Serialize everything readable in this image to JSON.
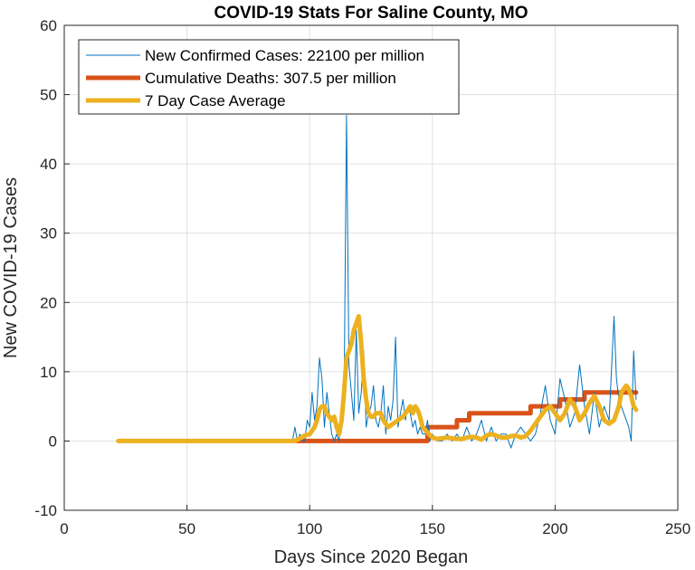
{
  "chart_data": {
    "type": "line",
    "title": "COVID-19 Stats For Saline County, MO",
    "xlabel": "Days Since 2020 Began",
    "ylabel": "New COVID-19 Cases",
    "xlim": [
      0,
      250
    ],
    "ylim": [
      -10,
      60
    ],
    "xticks": [
      0,
      50,
      100,
      150,
      200,
      250
    ],
    "yticks": [
      -10,
      0,
      10,
      20,
      30,
      40,
      50,
      60
    ],
    "grid": true,
    "legend_position": "top-left",
    "series": [
      {
        "name": "New Confirmed Cases: 22100 per million",
        "color": "#0072BD",
        "width": "thin",
        "x": [
          22,
          30,
          40,
          50,
          60,
          70,
          80,
          90,
          93,
          94,
          95,
          96,
          97,
          98,
          99,
          100,
          101,
          102,
          103,
          104,
          105,
          106,
          107,
          108,
          109,
          110,
          111,
          112,
          113,
          114,
          115,
          116,
          117,
          118,
          119,
          120,
          121,
          122,
          123,
          124,
          125,
          126,
          127,
          128,
          129,
          130,
          131,
          132,
          133,
          134,
          135,
          136,
          137,
          138,
          139,
          140,
          141,
          142,
          143,
          144,
          145,
          146,
          147,
          148,
          149,
          150,
          152,
          154,
          156,
          158,
          160,
          162,
          164,
          166,
          168,
          170,
          172,
          174,
          176,
          178,
          180,
          182,
          184,
          186,
          188,
          190,
          192,
          194,
          196,
          198,
          200,
          202,
          204,
          206,
          208,
          210,
          212,
          214,
          216,
          218,
          220,
          222,
          224,
          225,
          226,
          228,
          230,
          231,
          232,
          233
        ],
        "y": [
          0,
          0,
          0,
          0,
          0,
          0,
          0,
          0,
          0,
          2,
          0,
          1,
          0,
          0,
          3,
          2,
          7,
          3,
          5,
          12,
          9,
          2,
          7,
          4,
          1,
          0,
          1,
          0,
          5,
          6,
          47,
          11,
          7,
          3,
          16,
          4,
          7,
          13,
          2,
          4,
          5,
          8,
          3,
          2,
          4,
          8,
          1,
          5,
          3,
          6,
          15,
          2,
          4,
          6,
          3,
          5,
          4,
          2,
          3,
          1,
          2,
          1,
          1,
          3,
          0,
          1,
          0,
          0,
          1,
          0,
          1,
          0,
          2,
          0,
          1,
          3,
          0,
          2,
          0,
          1,
          1,
          -1,
          1,
          2,
          1,
          0,
          1,
          4,
          8,
          3,
          1,
          9,
          6,
          2,
          4,
          11,
          5,
          1,
          7,
          2,
          5,
          3,
          18,
          9,
          6,
          4,
          2,
          0,
          13,
          6
        ]
      },
      {
        "name": "Cumulative Deaths: 307.5 per million",
        "color": "#D95319",
        "width": "thick",
        "step": true,
        "x": [
          94,
          148,
          160,
          165,
          190,
          202,
          212,
          233
        ],
        "y": [
          0,
          2,
          3,
          4,
          5,
          6,
          7,
          7
        ]
      },
      {
        "name": "7 Day Case Average",
        "color": "#EDB120",
        "width": "thick",
        "x": [
          22,
          30,
          40,
          50,
          60,
          70,
          80,
          90,
          94,
          96,
          98,
          100,
          102,
          103,
          104,
          105,
          106,
          107,
          108,
          109,
          110,
          111,
          112,
          113,
          114,
          115,
          116,
          117,
          118,
          119,
          120,
          121,
          122,
          123,
          124,
          125,
          126,
          127,
          128,
          129,
          130,
          132,
          134,
          136,
          138,
          140,
          141,
          142,
          143,
          144,
          145,
          146,
          148,
          150,
          152,
          154,
          156,
          158,
          160,
          162,
          164,
          166,
          168,
          170,
          172,
          174,
          176,
          178,
          180,
          182,
          184,
          186,
          188,
          190,
          192,
          194,
          196,
          198,
          200,
          202,
          204,
          206,
          208,
          210,
          212,
          214,
          216,
          218,
          220,
          222,
          224,
          226,
          227,
          228,
          229,
          230,
          231,
          232,
          233
        ],
        "y": [
          0,
          0,
          0,
          0,
          0,
          0,
          0,
          0,
          0,
          0.4,
          0.8,
          1,
          2,
          3,
          4.5,
          5,
          5,
          4,
          3.5,
          3,
          3.5,
          2,
          1,
          3,
          7,
          12,
          13,
          14,
          16,
          17,
          18,
          14,
          9,
          6,
          4,
          3.5,
          3.5,
          4,
          4,
          4,
          3,
          2,
          2.5,
          3,
          3.5,
          4.5,
          5,
          4,
          5,
          4.5,
          3.5,
          2,
          1.2,
          0.5,
          0.3,
          0.4,
          0.5,
          0.4,
          0.3,
          0.3,
          0.5,
          0.6,
          0.5,
          0.2,
          0.8,
          1,
          0.8,
          0.5,
          0.5,
          0.7,
          0.8,
          0.5,
          0.7,
          1.5,
          2.5,
          3.5,
          4.5,
          5,
          4,
          3,
          4,
          6,
          5,
          3,
          4,
          5.5,
          6.5,
          5,
          3,
          2.5,
          3,
          5,
          7,
          7.5,
          8,
          7.5,
          6.5,
          5,
          4.5
        ]
      }
    ]
  }
}
